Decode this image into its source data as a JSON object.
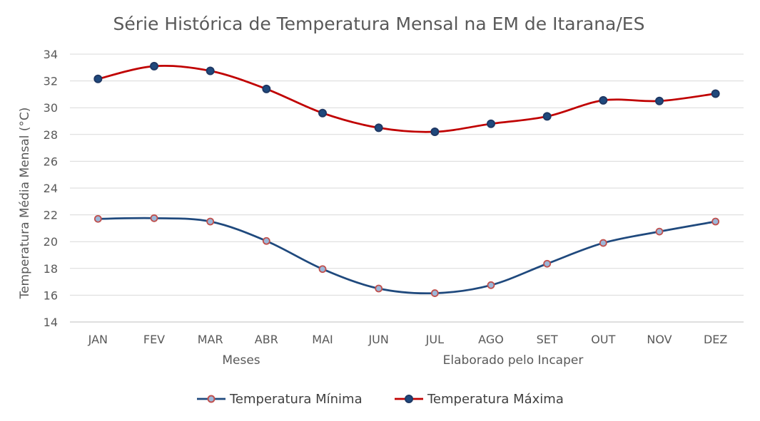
{
  "chart_data": {
    "type": "line",
    "title": "Série Histórica de Temperatura Mensal na EM de Itarana/ES",
    "xlabel": "Meses",
    "ylabel": "Temperatura Média Mensal (°C)",
    "annotation": "Elaborado pelo Incaper",
    "categories": [
      "JAN",
      "FEV",
      "MAR",
      "ABR",
      "MAI",
      "JUN",
      "JUL",
      "AGO",
      "SET",
      "OUT",
      "NOV",
      "DEZ"
    ],
    "ylim": [
      14,
      34
    ],
    "yticks": [
      "14",
      "16",
      "18",
      "20",
      "22",
      "24",
      "26",
      "28",
      "30",
      "32",
      "34"
    ],
    "grid": true,
    "legend_position": "bottom",
    "series": [
      {
        "name": "Temperatura Mínima",
        "values": [
          21.7,
          21.75,
          21.5,
          20.05,
          17.95,
          16.5,
          16.15,
          16.75,
          18.35,
          19.9,
          20.75,
          21.5
        ],
        "line_color": "#1f497d",
        "marker_color": "#9bb7d9",
        "marker_edge": "#c0504d"
      },
      {
        "name": "Temperatura Máxima",
        "values": [
          32.15,
          33.1,
          32.75,
          31.4,
          29.6,
          28.5,
          28.2,
          28.8,
          29.35,
          30.55,
          30.5,
          31.05
        ],
        "line_color": "#c00000",
        "marker_color": "#1f497d",
        "marker_edge": "#1f3864"
      }
    ]
  }
}
